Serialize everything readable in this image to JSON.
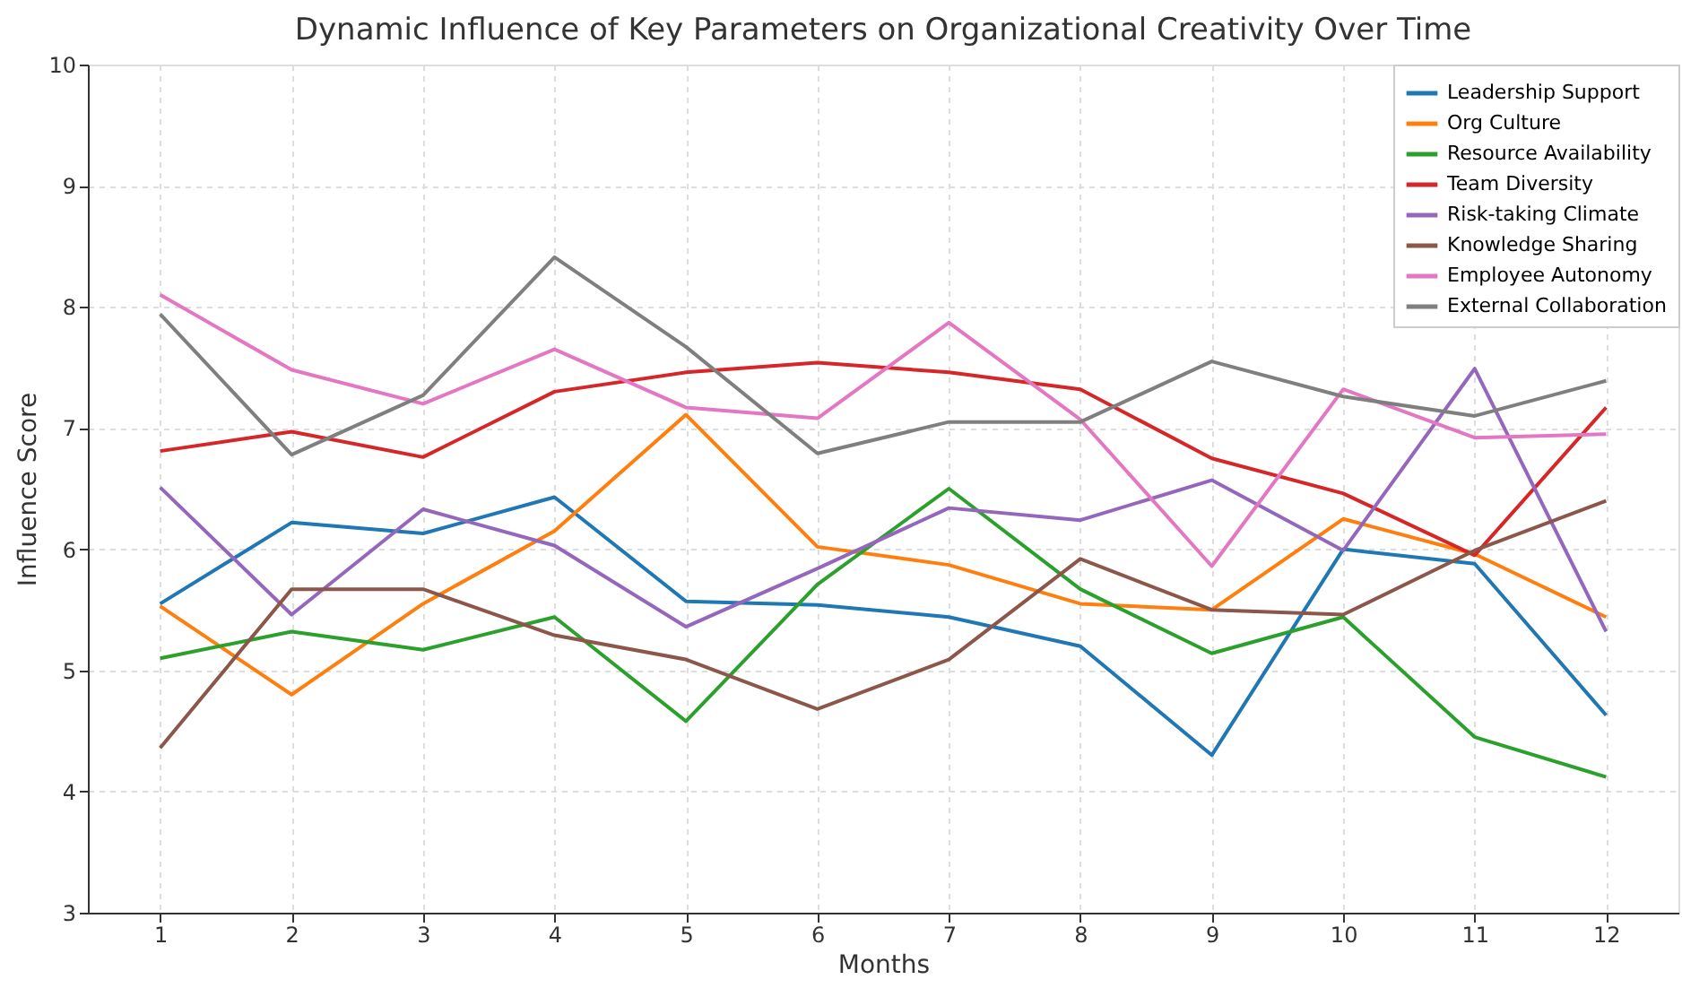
{
  "chart_data": {
    "type": "line",
    "title": "Dynamic Influence of Key Parameters on Organizational Creativity Over Time",
    "xlabel": "Months",
    "ylabel": "Influence Score",
    "x": [
      1,
      2,
      3,
      4,
      5,
      6,
      7,
      8,
      9,
      10,
      11,
      12
    ],
    "xlim": [
      0.45,
      12.55
    ],
    "xticks": [
      1,
      2,
      3,
      4,
      5,
      6,
      7,
      8,
      9,
      10,
      11,
      12
    ],
    "ylim": [
      3,
      10
    ],
    "yticks": [
      3,
      4,
      5,
      6,
      7,
      8,
      9,
      10
    ],
    "grid": true,
    "legend": "top right",
    "line_style": "solid",
    "marker": "none",
    "series": [
      {
        "name": "Leadership Support",
        "color": "#1f77b4",
        "values": [
          5.55,
          6.22,
          6.13,
          6.43,
          5.57,
          5.54,
          5.44,
          5.2,
          4.3,
          6.0,
          5.88,
          4.63
        ]
      },
      {
        "name": "Org Culture",
        "color": "#ff7f0e",
        "values": [
          5.53,
          4.8,
          5.55,
          6.15,
          7.11,
          6.02,
          5.87,
          5.55,
          5.5,
          6.25,
          5.96,
          5.44
        ]
      },
      {
        "name": "Resource Availability",
        "color": "#2ca02c",
        "values": [
          5.1,
          5.32,
          5.17,
          5.44,
          4.58,
          5.71,
          6.5,
          5.67,
          5.14,
          5.44,
          4.45,
          4.12
        ]
      },
      {
        "name": "Team Diversity",
        "color": "#d62728",
        "values": [
          6.81,
          6.97,
          6.76,
          7.3,
          7.46,
          7.54,
          7.46,
          7.32,
          6.75,
          6.46,
          5.95,
          7.17
        ]
      },
      {
        "name": "Risk-taking Climate",
        "color": "#9467bd",
        "values": [
          6.51,
          5.46,
          6.33,
          6.03,
          5.36,
          5.84,
          6.34,
          6.24,
          6.57,
          5.99,
          7.49,
          5.32
        ]
      },
      {
        "name": "Knowledge Sharing",
        "color": "#8c564b",
        "values": [
          4.36,
          5.67,
          5.67,
          5.29,
          5.09,
          4.68,
          5.09,
          5.92,
          5.5,
          5.46,
          5.99,
          6.4
        ]
      },
      {
        "name": "Employee Autonomy",
        "color": "#e377c2",
        "values": [
          8.1,
          7.48,
          7.2,
          7.65,
          7.17,
          7.08,
          7.87,
          7.07,
          5.86,
          7.32,
          6.92,
          6.95
        ]
      },
      {
        "name": "External Collaboration",
        "color": "#7f7f7f",
        "values": [
          7.94,
          6.78,
          7.27,
          8.41,
          7.67,
          6.79,
          7.05,
          7.05,
          7.55,
          7.26,
          7.1,
          7.39
        ]
      }
    ]
  }
}
